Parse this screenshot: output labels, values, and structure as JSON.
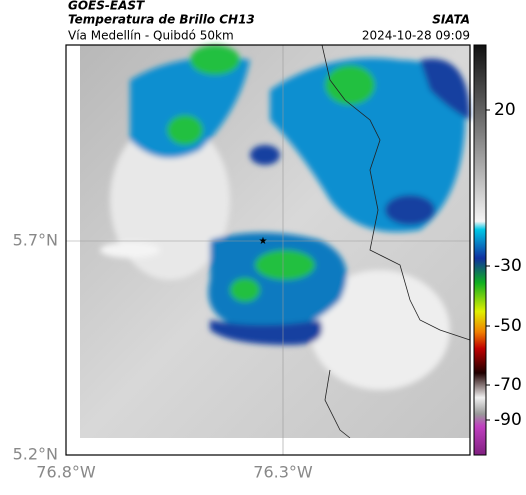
{
  "header": {
    "title": "GOES-EAST",
    "subtitle": "Temperatura de Brillo CH13",
    "source": "SIATA",
    "route": "Vía Medellín - Quibdó 50km",
    "datetime": "2024-10-28 09:09"
  },
  "map": {
    "lat_labels": [
      "5.7°N",
      "5.2°N"
    ],
    "lon_labels": [
      "76.8°W",
      "76.3°W"
    ]
  },
  "colorbar": {
    "ticks": [
      20,
      -30,
      -50,
      -70,
      -90
    ]
  }
}
